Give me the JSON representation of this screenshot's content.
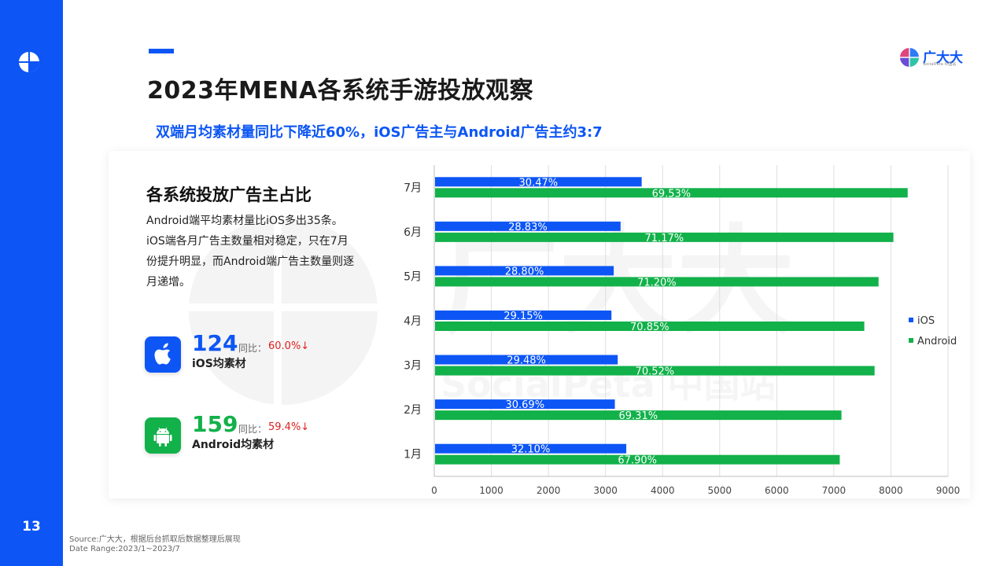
{
  "page": {
    "number": "13",
    "title": "2023年MENA各系统手游投放观察",
    "subtitle": "双端月均素材量同比下降近60%，iOS广告主与Android广告主约3:7",
    "brand": {
      "name": "广大大",
      "sub": "SocialPeta 中国站"
    },
    "watermark": {
      "big": "广大大",
      "small": "SocialPeta 中国站"
    },
    "source_lines": [
      "Source:广大大，根据后台抓取后数据整理后展现",
      "Date Range:2023/1~2023/7"
    ]
  },
  "panel": {
    "title": "各系统投放广告主占比",
    "description": "Android端平均素材量比iOS多出35条。iOS端各月广告主数量相对稳定，只在7月份提升明显，而Android端广告主数量则逐月递增。",
    "stats": [
      {
        "value": "124",
        "yoy_label": "同比：",
        "yoy_value": "60.0%↓",
        "label": "iOS均素材",
        "icon": "apple-icon",
        "color": "#0d56f5"
      },
      {
        "value": "159",
        "yoy_label": "同比：",
        "yoy_value": "59.4%↓",
        "label": "Android均素材",
        "icon": "android-icon",
        "color": "#12b14a"
      }
    ]
  },
  "chart_data": {
    "type": "bar",
    "orientation": "horizontal",
    "categories": [
      "7月",
      "6月",
      "5月",
      "4月",
      "3月",
      "2月",
      "1月"
    ],
    "series": [
      {
        "name": "iOS",
        "color": "#0d56f5",
        "values": [
          3620,
          3250,
          3130,
          3090,
          3200,
          3150,
          3350
        ],
        "labels": [
          "30.47%",
          "28.83%",
          "28.80%",
          "29.15%",
          "29.48%",
          "30.69%",
          "32.10%"
        ]
      },
      {
        "name": "Android",
        "color": "#12b14a",
        "values": [
          8280,
          8030,
          7770,
          7520,
          7700,
          7120,
          7090
        ],
        "labels": [
          "69.53%",
          "71.17%",
          "71.20%",
          "70.85%",
          "70.52%",
          "69.31%",
          "67.90%"
        ]
      }
    ],
    "xlim": [
      0,
      9000
    ],
    "xticks": [
      0,
      1000,
      2000,
      3000,
      4000,
      5000,
      6000,
      7000,
      8000,
      9000
    ],
    "grid": true,
    "legend": "right"
  }
}
